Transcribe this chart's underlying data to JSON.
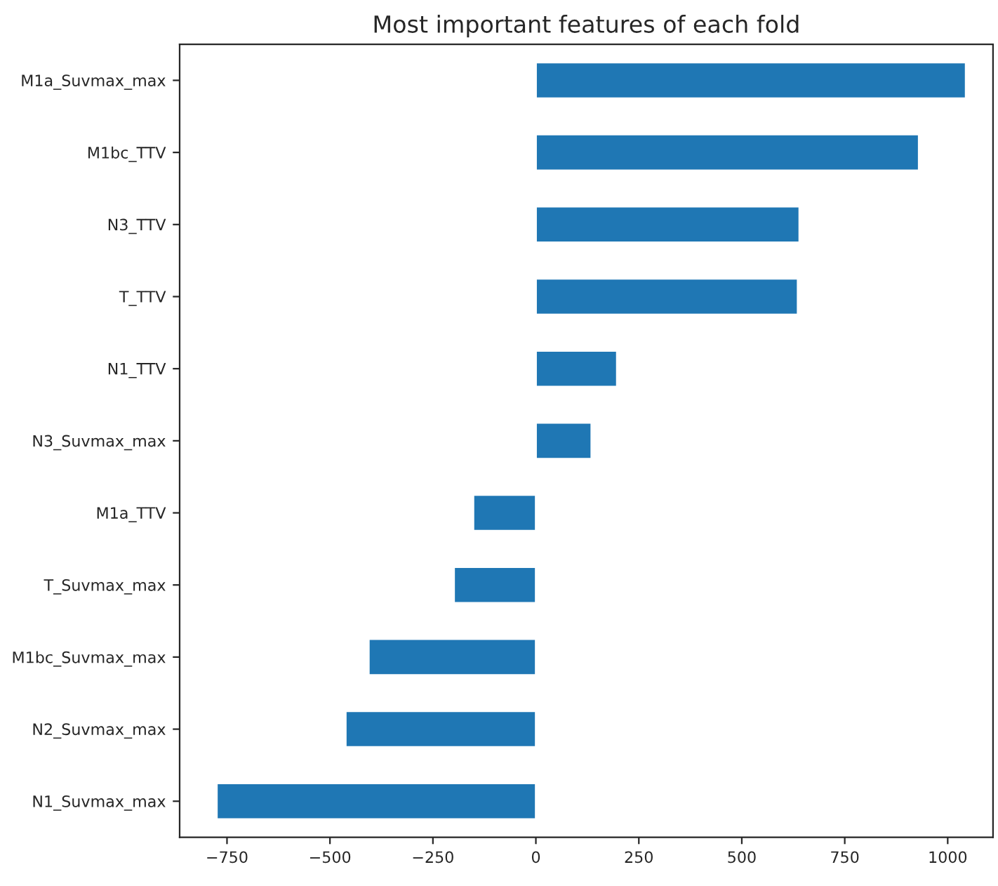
{
  "chart_data": {
    "type": "bar",
    "orientation": "horizontal",
    "title": "Most important features of each fold",
    "categories": [
      "M1a_Suvmax_max",
      "M1bc_TTV",
      "N3_TTV",
      "T_TTV",
      "N1_TTV",
      "N3_Suvmax_max",
      "M1a_TTV",
      "T_Suvmax_max",
      "M1bc_Suvmax_max",
      "N2_Suvmax_max",
      "N1_Suvmax_max"
    ],
    "values": [
      1044,
      930,
      640,
      636,
      197,
      135,
      -152,
      -199,
      -406,
      -462,
      -775
    ],
    "color": "#1f77b4",
    "xlim": [
      -865,
      1110
    ],
    "xticks": [
      {
        "value": -750,
        "label": "−750"
      },
      {
        "value": -500,
        "label": "−500"
      },
      {
        "value": -250,
        "label": "−250"
      },
      0,
      250,
      500,
      750,
      1000
    ],
    "grid": false,
    "legend": false
  }
}
